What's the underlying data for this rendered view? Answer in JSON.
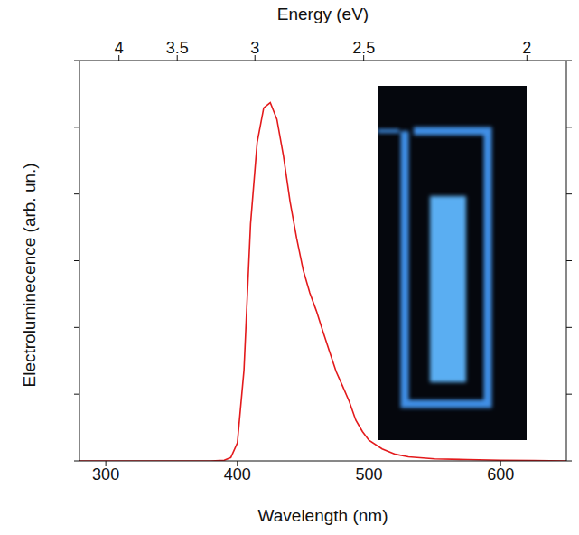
{
  "chart_data": {
    "type": "line",
    "xlabel": "Wavelength (nm)",
    "ylabel": "Electroluminecence (arb. un.)",
    "x2label": "Energy (eV)",
    "x": [
      280,
      290,
      300,
      310,
      320,
      330,
      340,
      350,
      360,
      370,
      380,
      390,
      395,
      400,
      405,
      410,
      415,
      420,
      425,
      430,
      435,
      440,
      445,
      450,
      455,
      460,
      465,
      470,
      475,
      480,
      485,
      490,
      495,
      500,
      510,
      520,
      530,
      550,
      575,
      600,
      625,
      650
    ],
    "values": [
      0,
      0,
      0,
      0,
      0,
      0,
      0,
      0,
      0,
      0,
      0,
      0.01,
      0.05,
      0.27,
      1.36,
      3.55,
      4.77,
      5.29,
      5.37,
      5.12,
      4.57,
      3.89,
      3.34,
      2.86,
      2.52,
      2.25,
      1.94,
      1.64,
      1.34,
      1.12,
      0.89,
      0.61,
      0.44,
      0.31,
      0.18,
      0.1,
      0.06,
      0.03,
      0.02,
      0.01,
      0.005,
      0
    ],
    "color": "#e31a1c",
    "xlim": [
      280,
      650
    ],
    "xticks": [
      300,
      400,
      500,
      600
    ],
    "x2ticks": [
      4,
      3.5,
      3,
      2.5,
      2
    ],
    "ylim": [
      0,
      6
    ],
    "yticks": [
      0,
      1,
      2,
      3,
      4,
      5,
      6
    ],
    "tick_labels": "x"
  }
}
